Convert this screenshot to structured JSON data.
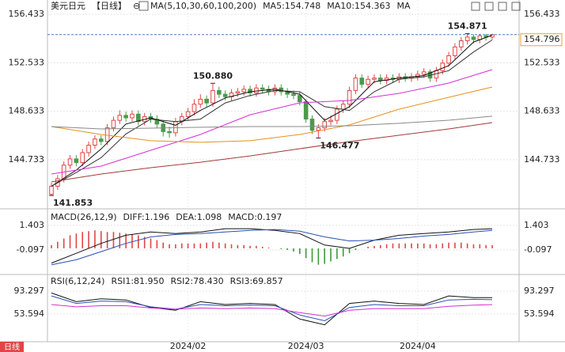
{
  "footer_badge": "日线",
  "chart_data": [
    {
      "type": "candlestick",
      "title": "美元日元",
      "period": "【日线】",
      "title_icon": "⊖",
      "indicator": "MA(5,10,30,60,100,200)",
      "up_color": "#e04646",
      "down_color": "#4c9a4c",
      "last_price_color": "#f0a030",
      "grid": true,
      "ylim": [
        140.91,
        157.26
      ],
      "yticks": [
        144.733,
        148.633,
        152.533,
        156.433
      ],
      "xlim": [
        0,
        71
      ],
      "xticks": [
        {
          "value": 22,
          "label": "2024/02"
        },
        {
          "value": 41,
          "label": "2024/03"
        },
        {
          "value": 59,
          "label": "2024/04"
        }
      ],
      "candles": {
        "open": [
          141.95,
          142.6,
          143.2,
          144.3,
          144.8,
          144.5,
          145.3,
          145.9,
          146.4,
          146.2,
          147.3,
          147.9,
          148.3,
          148.1,
          148.4,
          147.8,
          148.2,
          148.0,
          147.6,
          147.0,
          146.9,
          147.8,
          148.2,
          148.6,
          149.2,
          149.6,
          149.3,
          150.3,
          150.0,
          149.8,
          150.1,
          150.2,
          150.4,
          150.1,
          150.5,
          150.4,
          150.2,
          150.5,
          150.2,
          150.0,
          149.9,
          149.4,
          148.0,
          147.1,
          147.3,
          147.8,
          147.9,
          148.8,
          149.2,
          150.3,
          151.3,
          150.8,
          151.2,
          151.3,
          151.1,
          151.3,
          151.2,
          151.4,
          151.3,
          151.4,
          151.6,
          151.8,
          151.3,
          151.9,
          152.5,
          153.1,
          153.8,
          154.3,
          154.6,
          154.4,
          154.7,
          154.6
        ],
        "high": [
          142.9,
          143.5,
          144.6,
          145.1,
          145.1,
          145.6,
          146.2,
          146.7,
          146.7,
          147.6,
          148.2,
          148.7,
          148.6,
          148.7,
          148.7,
          148.5,
          148.5,
          148.3,
          147.9,
          147.4,
          148.1,
          148.5,
          148.9,
          149.6,
          150.0,
          149.9,
          150.88,
          150.6,
          150.3,
          150.4,
          150.5,
          150.7,
          150.7,
          150.8,
          150.8,
          150.7,
          150.8,
          150.8,
          150.5,
          150.3,
          150.2,
          149.6,
          148.3,
          147.6,
          148.1,
          148.3,
          149.1,
          149.5,
          150.6,
          151.6,
          151.6,
          151.5,
          151.6,
          151.6,
          151.6,
          151.6,
          151.7,
          151.7,
          151.7,
          151.9,
          152.1,
          152.0,
          152.2,
          152.8,
          153.4,
          154.1,
          154.6,
          154.871,
          154.8,
          154.85,
          154.85,
          154.85
        ],
        "low": [
          141.853,
          142.3,
          142.9,
          144.0,
          144.2,
          144.2,
          145.0,
          145.6,
          145.9,
          145.9,
          147.0,
          147.6,
          147.8,
          147.8,
          147.5,
          147.5,
          147.7,
          147.3,
          146.6,
          146.5,
          146.6,
          147.5,
          147.9,
          148.3,
          148.9,
          149.0,
          149.0,
          149.7,
          149.5,
          149.5,
          149.8,
          149.9,
          149.8,
          149.8,
          150.1,
          149.9,
          149.9,
          149.9,
          149.7,
          149.6,
          149.1,
          147.7,
          146.8,
          146.477,
          147.0,
          147.5,
          147.6,
          148.5,
          148.9,
          150.0,
          150.5,
          150.5,
          150.9,
          150.8,
          150.8,
          150.9,
          150.9,
          151.0,
          151.0,
          151.1,
          151.3,
          151.0,
          151.0,
          151.6,
          152.2,
          152.8,
          153.5,
          154.0,
          154.1,
          154.1,
          154.3,
          154.4
        ],
        "close": [
          142.6,
          143.2,
          144.3,
          144.8,
          144.5,
          145.3,
          145.9,
          146.4,
          146.2,
          147.3,
          147.9,
          148.3,
          148.1,
          148.4,
          147.8,
          148.2,
          148.0,
          147.6,
          147.0,
          146.9,
          147.8,
          148.2,
          148.6,
          149.2,
          149.6,
          149.3,
          150.3,
          150.0,
          149.8,
          150.1,
          150.2,
          150.4,
          150.1,
          150.5,
          150.4,
          150.2,
          150.5,
          150.2,
          150.0,
          149.9,
          149.4,
          148.0,
          147.1,
          147.3,
          147.8,
          147.9,
          148.8,
          149.2,
          150.3,
          151.3,
          150.8,
          151.2,
          151.3,
          151.1,
          151.3,
          151.2,
          151.4,
          151.3,
          151.4,
          151.6,
          151.8,
          151.3,
          151.9,
          152.5,
          153.1,
          153.8,
          154.3,
          154.6,
          154.4,
          154.7,
          154.6,
          154.796
        ]
      },
      "lines": [
        {
          "label": "MA5:154.748",
          "color": "#111111",
          "x": [
            0,
            4,
            8,
            12,
            16,
            20,
            24,
            28,
            32,
            36,
            40,
            44,
            48,
            52,
            56,
            60,
            64,
            68,
            71
          ],
          "values": [
            142.6,
            143.9,
            145.6,
            147.6,
            148.1,
            147.5,
            148.7,
            149.7,
            150.2,
            150.4,
            150.0,
            147.9,
            149.0,
            151.0,
            151.3,
            151.5,
            152.3,
            154.2,
            154.748
          ]
        },
        {
          "label": "MA10:154.363",
          "color": "#333333",
          "x": [
            0,
            4,
            8,
            12,
            16,
            20,
            24,
            28,
            32,
            36,
            40,
            44,
            48,
            52,
            56,
            60,
            64,
            68,
            71
          ],
          "values": [
            142.6,
            143.7,
            144.9,
            146.8,
            148.0,
            147.8,
            148.0,
            149.3,
            149.9,
            150.3,
            150.2,
            149.0,
            148.7,
            150.2,
            151.2,
            151.4,
            151.9,
            153.4,
            154.363
          ]
        },
        {
          "label": "MA",
          "color": "#d42fd4",
          "x": [
            0,
            8,
            16,
            24,
            32,
            40,
            48,
            56,
            64,
            71
          ],
          "values": [
            143.58,
            144.22,
            145.49,
            146.76,
            148.35,
            149.31,
            149.5,
            150.07,
            150.9,
            151.98
          ]
        },
        {
          "color": "#e8901a",
          "x": [
            0,
            8,
            16,
            24,
            32,
            40,
            48,
            56,
            64,
            71
          ],
          "values": [
            147.4,
            146.76,
            146.26,
            146.13,
            146.26,
            146.76,
            147.53,
            148.8,
            149.75,
            150.58
          ]
        },
        {
          "color": "#888888",
          "x": [
            0,
            8,
            16,
            24,
            32,
            40,
            48,
            56,
            64,
            71
          ],
          "values": [
            147.4,
            147.21,
            147.27,
            147.34,
            147.4,
            147.4,
            147.46,
            147.66,
            147.91,
            148.23
          ]
        },
        {
          "color": "#a33a3a",
          "x": [
            0,
            8,
            16,
            24,
            32,
            40,
            48,
            56,
            64,
            71
          ],
          "values": [
            142.95,
            143.58,
            144.09,
            144.53,
            145.04,
            145.62,
            146.19,
            146.7,
            147.21,
            147.72
          ]
        }
      ],
      "annotations": [
        {
          "label": "154.871",
          "value": 154.871
        },
        {
          "label": "150.880",
          "value": 150.88
        },
        {
          "label": "146.477",
          "value": 146.477
        },
        {
          "label": "141.853",
          "value": 141.853
        }
      ]
    },
    {
      "type": "macd",
      "title": "MACD(26,12,9)",
      "ylim": [
        -1.5,
        2.22
      ],
      "yticks": [
        -0.097,
        1.403
      ],
      "series": [
        {
          "label": "DIFF:1.196",
          "color": "#111111",
          "x": [
            0,
            4,
            8,
            12,
            16,
            20,
            24,
            28,
            32,
            36,
            40,
            44,
            48,
            52,
            56,
            60,
            64,
            68,
            71
          ],
          "values": [
            -0.9,
            -0.3,
            0.3,
            0.8,
            1.0,
            0.9,
            1.0,
            1.2,
            1.2,
            1.1,
            0.9,
            0.2,
            0.0,
            0.5,
            0.8,
            0.9,
            1.0,
            1.15,
            1.196
          ]
        },
        {
          "label": "DEA:1.098",
          "color": "#2850b0",
          "x": [
            0,
            4,
            8,
            12,
            16,
            20,
            24,
            28,
            32,
            36,
            40,
            44,
            48,
            52,
            56,
            60,
            64,
            68,
            71
          ],
          "values": [
            -1.0,
            -0.7,
            -0.2,
            0.3,
            0.7,
            0.85,
            0.9,
            1.0,
            1.1,
            1.15,
            1.05,
            0.7,
            0.45,
            0.5,
            0.6,
            0.75,
            0.85,
            1.0,
            1.098
          ]
        }
      ],
      "histogram": {
        "label": "MACD:0.197",
        "color": "#d42fd4",
        "up_color": "#e04646",
        "down_color": "#3c9a3c",
        "values": [
          0.2,
          0.4,
          0.6,
          0.8,
          0.9,
          1.0,
          1.05,
          1.1,
          1.05,
          1.0,
          1.0,
          0.95,
          0.9,
          0.85,
          0.8,
          0.7,
          0.6,
          0.5,
          0.35,
          0.25,
          0.25,
          0.3,
          0.3,
          0.3,
          0.3,
          0.35,
          0.4,
          0.35,
          0.3,
          0.25,
          0.2,
          0.2,
          0.15,
          0.15,
          0.1,
          0.05,
          0.0,
          -0.05,
          -0.1,
          -0.2,
          -0.35,
          -0.6,
          -0.85,
          -1.0,
          -0.95,
          -0.8,
          -0.65,
          -0.5,
          -0.3,
          -0.1,
          0.0,
          0.1,
          0.15,
          0.2,
          0.25,
          0.3,
          0.3,
          0.3,
          0.3,
          0.3,
          0.3,
          0.25,
          0.25,
          0.3,
          0.35,
          0.35,
          0.35,
          0.3,
          0.25,
          0.25,
          0.2,
          0.197
        ]
      }
    },
    {
      "type": "rsi",
      "title": "RSI(6,12,24)",
      "ylim": [
        5.68,
        120.68
      ],
      "yticks": [
        53.594,
        93.297
      ],
      "series": [
        {
          "label": "RSI1:81.950",
          "color": "#111111",
          "x": [
            0,
            4,
            8,
            12,
            16,
            20,
            24,
            28,
            32,
            36,
            40,
            44,
            48,
            52,
            56,
            60,
            64,
            68,
            71
          ],
          "values": [
            90,
            75,
            80,
            78,
            65,
            60,
            75,
            70,
            72,
            70,
            45,
            35,
            72,
            76,
            72,
            70,
            85,
            82,
            81.95
          ]
        },
        {
          "label": "RSI2:78.430",
          "color": "#2850b0",
          "x": [
            0,
            4,
            8,
            12,
            16,
            20,
            24,
            28,
            32,
            36,
            40,
            44,
            48,
            52,
            56,
            60,
            64,
            68,
            71
          ],
          "values": [
            85,
            72,
            76,
            75,
            66,
            62,
            70,
            68,
            69,
            68,
            52,
            42,
            65,
            70,
            68,
            68,
            78,
            79,
            78.43
          ]
        },
        {
          "label": "RSI3:69.857",
          "color": "#d42fd4",
          "x": [
            0,
            4,
            8,
            12,
            16,
            20,
            24,
            28,
            32,
            36,
            40,
            44,
            48,
            52,
            56,
            60,
            64,
            68,
            71
          ],
          "values": [
            70,
            66,
            68,
            68,
            64,
            62,
            64,
            63,
            64,
            63,
            56,
            50,
            60,
            63,
            63,
            63,
            67,
            69,
            69.857
          ]
        }
      ]
    }
  ]
}
